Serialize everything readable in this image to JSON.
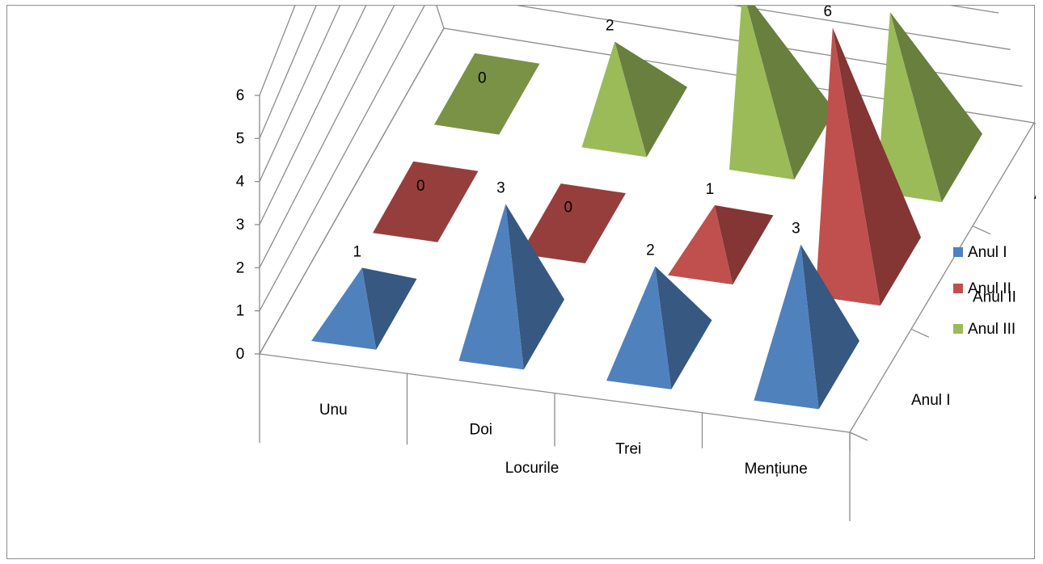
{
  "chart_data": {
    "type": "bar",
    "style": "3d-pyramid",
    "categories": [
      "Unu",
      "Doi",
      "Trei",
      "Mențiune"
    ],
    "series": [
      {
        "name": "Anul I",
        "values": [
          1,
          3,
          2,
          3
        ],
        "color": "#4f81bd"
      },
      {
        "name": "Anul II",
        "values": [
          0,
          0,
          1,
          6
        ],
        "color": "#c0504d"
      },
      {
        "name": "Anul III",
        "values": [
          0,
          2,
          4,
          4
        ],
        "color": "#9bbb59"
      }
    ],
    "xlabel": "Locurile",
    "depth_labels": [
      "Anul I",
      "Anul II",
      "Anul III"
    ],
    "yticks": [
      "0",
      "1",
      "2",
      "3",
      "4",
      "5",
      "6"
    ],
    "ylim": [
      0,
      6
    ],
    "grid": true,
    "legend": "right",
    "data_labels": true
  }
}
